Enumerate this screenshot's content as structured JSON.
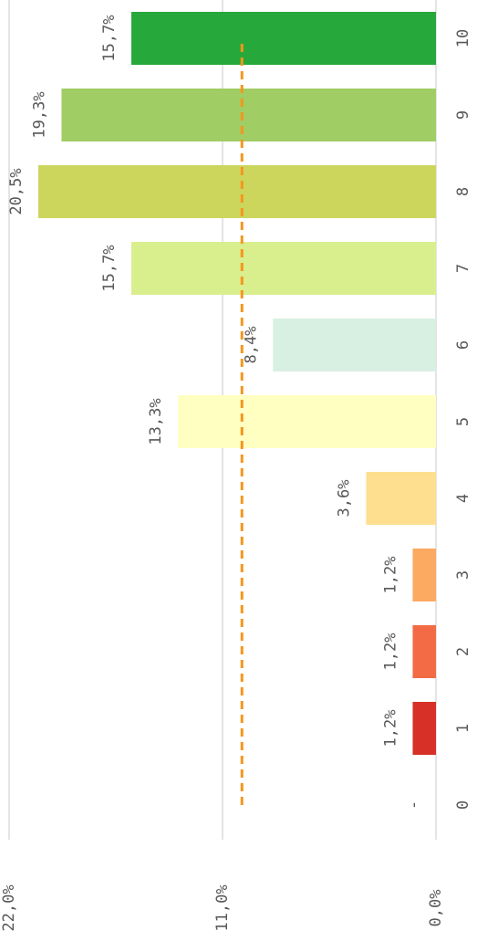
{
  "chart_data": {
    "type": "bar",
    "categories": [
      "0",
      "1",
      "2",
      "3",
      "4",
      "5",
      "6",
      "7",
      "8",
      "9",
      "10"
    ],
    "values": [
      0,
      1.2,
      1.2,
      1.2,
      3.6,
      13.3,
      8.4,
      15.7,
      20.5,
      19.3,
      15.7
    ],
    "value_labels": [
      "-",
      "1,2%",
      "1,2%",
      "1,2%",
      "3,6%",
      "13,3%",
      "8,4%",
      "15,7%",
      "20,5%",
      "19,3%",
      "15,7%"
    ],
    "colors": [
      "#d73027",
      "#d73027",
      "#f26b45",
      "#fcaa62",
      "#fedf8f",
      "#ffffc2",
      "#d8f0e2",
      "#d9ee8c",
      "#ccd65d",
      "#a0cd64",
      "#27a83a"
    ],
    "ylim": [
      0,
      22
    ],
    "yticks": [
      {
        "value": 0,
        "label": "0,0%"
      },
      {
        "value": 11,
        "label": "11,0%"
      },
      {
        "value": 22,
        "label": "22,0%"
      }
    ],
    "grid": true,
    "mean_line": {
      "value": 10.0,
      "color": "#f5961e"
    }
  }
}
